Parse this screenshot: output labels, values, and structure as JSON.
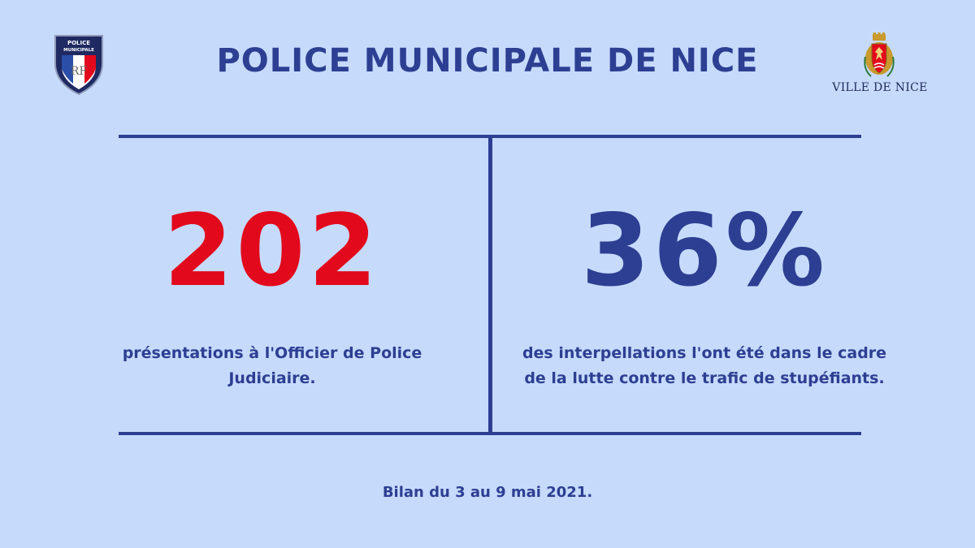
{
  "header": {
    "title": "POLICE MUNICIPALE DE NICE",
    "left_logo_icon": "police-municipale-shield-icon",
    "right_logo_icon": "ville-de-nice-coat-of-arms-icon",
    "right_logo_text": "VILLE DE NICE"
  },
  "stats": [
    {
      "value": "202",
      "color": "#e3091c",
      "description": "présentations à l'Officier de Police Judiciaire."
    },
    {
      "value": "36%",
      "color": "#2d3f92",
      "description": "des interpellations l'ont été dans le cadre de la lutte contre le trafic de stupéfiants."
    }
  ],
  "footer": {
    "text": "Bilan du 3 au 9 mai 2021."
  },
  "colors": {
    "background": "#c6dafc",
    "primary_blue": "#2d3f92",
    "accent_red": "#e3091c"
  }
}
